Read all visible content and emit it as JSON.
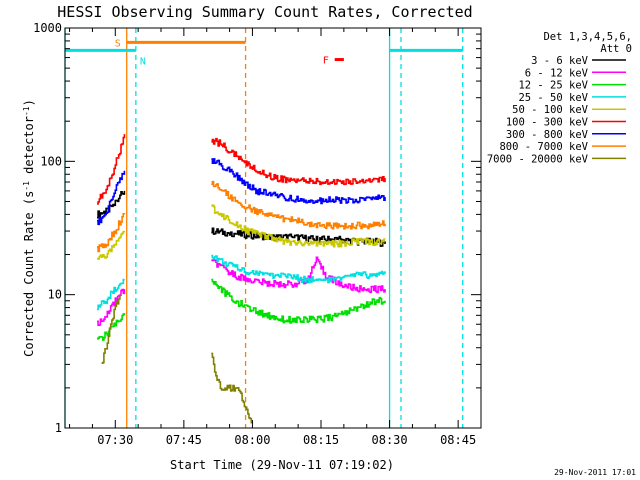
{
  "chart_data": {
    "type": "line",
    "title": "HESSI Observing Summary Count Rates, Corrected",
    "xlabel": "Start Time (29-Nov-11 07:19:02)",
    "ylabel_main": "Corrected Count Rate (s",
    "ylabel_sup1": "-1",
    "ylabel_mid": " detector",
    "ylabel_sup2": "-1",
    "ylabel_end": ")",
    "yscale": "log",
    "ylim": [
      1,
      1000
    ],
    "xlim_minutes_after_0719": [
      0,
      91
    ],
    "x_ticks": [
      {
        "label": "07:30",
        "minutes": 11
      },
      {
        "label": "07:45",
        "minutes": 26
      },
      {
        "label": "08:00",
        "minutes": 41
      },
      {
        "label": "08:15",
        "minutes": 56
      },
      {
        "label": "08:30",
        "minutes": 71
      },
      {
        "label": "08:45",
        "minutes": 86
      }
    ],
    "y_ticks": [
      {
        "label": "1",
        "value": 1
      },
      {
        "label": "10",
        "value": 10
      },
      {
        "label": "100",
        "value": 100
      },
      {
        "label": "1000",
        "value": 1000
      }
    ],
    "legend_header": [
      "Det 1,3,4,5,6,",
      "Att 0"
    ],
    "legend_position": "right",
    "series": [
      {
        "name": "3 - 6 keV",
        "color": "#000000",
        "segments": [
          [
            [
              7,
              40
            ],
            [
              9,
              42
            ],
            [
              10,
              45
            ],
            [
              11,
              48
            ],
            [
              12,
              55
            ],
            [
              13,
              60
            ]
          ],
          [
            [
              32,
              30
            ],
            [
              36,
              29
            ],
            [
              40,
              28
            ],
            [
              45,
              27
            ],
            [
              50,
              27
            ],
            [
              55,
              26
            ],
            [
              60,
              26
            ],
            [
              64,
              25
            ],
            [
              68,
              25
            ],
            [
              70,
              24
            ]
          ]
        ]
      },
      {
        "name": "6 - 12 keV",
        "color": "#ff00ff",
        "segments": [
          [
            [
              7,
              6
            ],
            [
              9,
              7
            ],
            [
              10,
              8
            ],
            [
              11,
              9
            ],
            [
              12,
              10
            ],
            [
              13,
              11
            ]
          ],
          [
            [
              32,
              18
            ],
            [
              34,
              16
            ],
            [
              37,
              14
            ],
            [
              40,
              13
            ],
            [
              45,
              12
            ],
            [
              50,
              12
            ],
            [
              53,
              13
            ],
            [
              55,
              18
            ],
            [
              57,
              14
            ],
            [
              60,
              12
            ],
            [
              64,
              11
            ],
            [
              68,
              11
            ],
            [
              70,
              11
            ]
          ]
        ]
      },
      {
        "name": "12 - 25 keV",
        "color": "#00e000",
        "segments": [
          [
            [
              7,
              4.5
            ],
            [
              9,
              5
            ],
            [
              10,
              5.5
            ],
            [
              11,
              6
            ],
            [
              12,
              6.5
            ],
            [
              13,
              7
            ]
          ],
          [
            [
              32,
              13
            ],
            [
              34,
              11
            ],
            [
              37,
              9
            ],
            [
              40,
              8
            ],
            [
              44,
              7
            ],
            [
              48,
              6.5
            ],
            [
              52,
              6.5
            ],
            [
              56,
              6.5
            ],
            [
              60,
              7
            ],
            [
              64,
              8
            ],
            [
              68,
              9
            ],
            [
              70,
              9
            ]
          ]
        ]
      },
      {
        "name": "25 - 50 keV",
        "color": "#00e0e0",
        "segments": [
          [
            [
              7,
              8
            ],
            [
              9,
              9
            ],
            [
              10,
              10
            ],
            [
              11,
              11
            ],
            [
              12,
              12
            ],
            [
              13,
              13
            ]
          ],
          [
            [
              32,
              20
            ],
            [
              34,
              18
            ],
            [
              37,
              16
            ],
            [
              40,
              15
            ],
            [
              44,
              14
            ],
            [
              48,
              14
            ],
            [
              52,
              13
            ],
            [
              56,
              13
            ],
            [
              60,
              13
            ],
            [
              64,
              14
            ],
            [
              68,
              14
            ],
            [
              70,
              15
            ]
          ]
        ]
      },
      {
        "name": "50 - 100 keV",
        "color": "#c8c800",
        "segments": [
          [
            [
              7,
              18
            ],
            [
              9,
              20
            ],
            [
              10,
              22
            ],
            [
              11,
              25
            ],
            [
              12,
              28
            ],
            [
              13,
              30
            ]
          ],
          [
            [
              32,
              45
            ],
            [
              34,
              40
            ],
            [
              37,
              35
            ],
            [
              40,
              30
            ],
            [
              44,
              27
            ],
            [
              48,
              25
            ],
            [
              52,
              24
            ],
            [
              56,
              24
            ],
            [
              60,
              24
            ],
            [
              64,
              25
            ],
            [
              68,
              25
            ],
            [
              70,
              26
            ]
          ]
        ]
      },
      {
        "name": "100 - 300 keV",
        "color": "#ff0000",
        "segments": [
          [
            [
              7,
              50
            ],
            [
              9,
              60
            ],
            [
              10,
              75
            ],
            [
              11,
              95
            ],
            [
              12,
              120
            ],
            [
              13,
              160
            ]
          ],
          [
            [
              32,
              145
            ],
            [
              34,
              135
            ],
            [
              36,
              120
            ],
            [
              39,
              100
            ],
            [
              42,
              85
            ],
            [
              46,
              75
            ],
            [
              50,
              72
            ],
            [
              54,
              70
            ],
            [
              58,
              70
            ],
            [
              62,
              70
            ],
            [
              66,
              72
            ],
            [
              70,
              75
            ]
          ]
        ]
      },
      {
        "name": "300 - 800 keV",
        "color": "#0000ff",
        "segments": [
          [
            [
              7,
              35
            ],
            [
              9,
              40
            ],
            [
              10,
              50
            ],
            [
              11,
              60
            ],
            [
              12,
              75
            ],
            [
              13,
              85
            ]
          ],
          [
            [
              32,
              100
            ],
            [
              34,
              95
            ],
            [
              36,
              85
            ],
            [
              39,
              70
            ],
            [
              42,
              60
            ],
            [
              46,
              55
            ],
            [
              50,
              52
            ],
            [
              54,
              51
            ],
            [
              58,
              51
            ],
            [
              62,
              51
            ],
            [
              66,
              52
            ],
            [
              70,
              54
            ]
          ]
        ]
      },
      {
        "name": "800 - 7000 keV",
        "color": "#ff8000",
        "segments": [
          [
            [
              7,
              22
            ],
            [
              9,
              24
            ],
            [
              10,
              27
            ],
            [
              11,
              30
            ],
            [
              12,
              35
            ],
            [
              13,
              40
            ]
          ],
          [
            [
              32,
              68
            ],
            [
              34,
              62
            ],
            [
              36,
              55
            ],
            [
              39,
              47
            ],
            [
              42,
              42
            ],
            [
              46,
              38
            ],
            [
              50,
              36
            ],
            [
              54,
              34
            ],
            [
              58,
              33
            ],
            [
              62,
              33
            ],
            [
              66,
              33
            ],
            [
              70,
              34
            ]
          ]
        ]
      },
      {
        "name": "7000 - 20000 keV",
        "color": "#808000",
        "segments": [
          [
            [
              8,
              3
            ],
            [
              9,
              4
            ],
            [
              10,
              6
            ],
            [
              11,
              8
            ],
            [
              12,
              10
            ]
          ],
          [
            [
              32,
              3.5
            ],
            [
              33,
              2.5
            ],
            [
              34,
              2
            ],
            [
              36,
              2
            ],
            [
              38,
              2
            ],
            [
              39,
              1.6
            ],
            [
              40,
              1.3
            ],
            [
              41,
              1.1
            ]
          ]
        ]
      }
    ],
    "markers": [
      {
        "name": "S",
        "label": "S",
        "type": "bar",
        "color": "#ff8000",
        "x_start": 13.5,
        "x_end": 39.5,
        "y": 780
      },
      {
        "name": "N",
        "label": "N",
        "type": "bar",
        "color": "#00e0e0",
        "x_start": 0,
        "x_end": 15.5,
        "y": 680
      },
      {
        "name": "N",
        "label": "",
        "type": "bar",
        "color": "#00e0e0",
        "x_start": 71,
        "x_end": 87,
        "y": 680
      },
      {
        "name": "F",
        "label": "F",
        "type": "bar",
        "color": "#ff0000",
        "x_start": 59,
        "x_end": 61,
        "y": 580
      }
    ],
    "vlines": [
      {
        "x": 0,
        "color": "#00e0e0",
        "style": "solid"
      },
      {
        "x": 13.5,
        "color": "#ff8000",
        "style": "solid"
      },
      {
        "x": 15.5,
        "color": "#00e0e0",
        "style": "dashed"
      },
      {
        "x": 39.5,
        "color": "#ff8000",
        "style": "dashed"
      },
      {
        "x": 71,
        "color": "#00e0e0",
        "style": "solid"
      },
      {
        "x": 73.5,
        "color": "#00e0e0",
        "style": "dashed"
      },
      {
        "x": 87,
        "color": "#00e0e0",
        "style": "dashed"
      }
    ],
    "timestamp": "29-Nov-2011 17:01"
  }
}
